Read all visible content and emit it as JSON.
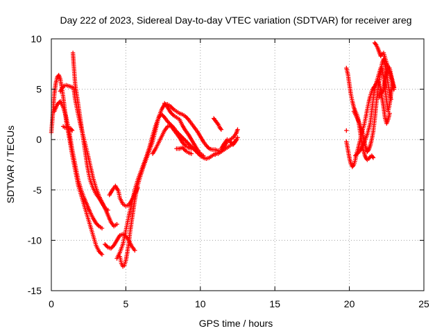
{
  "chart_data": {
    "type": "scatter",
    "title": "Day 222 of 2023, Sidereal Day-to-day VTEC variation (SDTVAR) for receiver areg",
    "xlabel": "GPS time / hours",
    "ylabel": "SDTVAR / TECUs",
    "xlim": [
      0,
      25
    ],
    "ylim": [
      -15,
      10
    ],
    "xticks": [
      0,
      5,
      10,
      15,
      20,
      25
    ],
    "yticks": [
      -15,
      -10,
      -5,
      0,
      5,
      10
    ],
    "grid": true,
    "marker": "+",
    "color": "#ff0000",
    "segments": [
      [
        [
          0.0,
          0.7
        ],
        [
          0.1,
          2.5
        ],
        [
          0.2,
          4.5
        ],
        [
          0.3,
          5.6
        ],
        [
          0.4,
          6.2
        ],
        [
          0.5,
          6.4
        ],
        [
          0.6,
          6.0
        ],
        [
          0.7,
          5.2
        ],
        [
          0.8,
          4.2
        ],
        [
          0.9,
          3.0
        ],
        [
          1.0,
          1.8
        ],
        [
          1.2,
          0.2
        ],
        [
          1.4,
          -1.5
        ],
        [
          1.6,
          -3.0
        ],
        [
          1.8,
          -4.5
        ],
        [
          2.0,
          -5.5
        ],
        [
          2.2,
          -6.5
        ],
        [
          2.4,
          -7.5
        ],
        [
          2.6,
          -8.5
        ],
        [
          2.8,
          -9.5
        ],
        [
          3.0,
          -10.5
        ],
        [
          3.2,
          -11.1
        ],
        [
          3.4,
          -11.4
        ]
      ],
      [
        [
          0.2,
          2.8
        ],
        [
          0.4,
          3.5
        ],
        [
          0.6,
          3.8
        ],
        [
          0.8,
          3.2
        ],
        [
          1.0,
          2.2
        ],
        [
          1.2,
          0.8
        ],
        [
          1.4,
          -1.0
        ],
        [
          1.6,
          -2.5
        ],
        [
          1.8,
          -4.0
        ],
        [
          2.0,
          -5.0
        ],
        [
          2.2,
          -5.8
        ],
        [
          2.4,
          -6.5
        ],
        [
          2.6,
          -7.2
        ],
        [
          2.8,
          -7.8
        ],
        [
          3.0,
          -8.3
        ],
        [
          3.2,
          -8.6
        ],
        [
          3.4,
          -8.8
        ]
      ],
      [
        [
          0.6,
          4.8
        ],
        [
          0.8,
          5.3
        ],
        [
          1.0,
          5.4
        ],
        [
          1.2,
          5.3
        ],
        [
          1.4,
          5.2
        ],
        [
          1.5,
          5.1
        ],
        [
          1.6,
          4.0
        ],
        [
          1.8,
          2.5
        ],
        [
          2.0,
          1.2
        ],
        [
          2.2,
          0.0
        ],
        [
          2.4,
          -1.2
        ],
        [
          2.6,
          -2.5
        ],
        [
          2.8,
          -3.8
        ],
        [
          3.0,
          -4.8
        ],
        [
          3.2,
          -5.6
        ],
        [
          3.4,
          -6.2
        ],
        [
          3.6,
          -6.8
        ],
        [
          3.8,
          -7.5
        ],
        [
          4.0,
          -8.2
        ],
        [
          4.2,
          -8.6
        ],
        [
          4.4,
          -8.4
        ]
      ],
      [
        [
          1.45,
          8.6
        ],
        [
          1.5,
          7.5
        ],
        [
          1.55,
          6.5
        ],
        [
          1.6,
          5.5
        ],
        [
          1.7,
          4.5
        ],
        [
          1.8,
          3.5
        ],
        [
          1.9,
          2.5
        ],
        [
          2.0,
          1.5
        ],
        [
          2.1,
          0.5
        ],
        [
          2.2,
          -0.5
        ],
        [
          2.3,
          -1.5
        ],
        [
          2.4,
          -2.5
        ],
        [
          2.5,
          -3.3
        ],
        [
          2.6,
          -4.0
        ],
        [
          2.8,
          -4.8
        ],
        [
          3.0,
          -5.4
        ],
        [
          3.2,
          -5.8
        ],
        [
          3.4,
          -6.3
        ],
        [
          3.6,
          -6.8
        ],
        [
          3.8,
          -7.0
        ]
      ],
      [
        [
          3.6,
          -10.4
        ],
        [
          3.8,
          -10.7
        ],
        [
          4.0,
          -10.8
        ],
        [
          4.2,
          -10.5
        ],
        [
          4.4,
          -10.0
        ],
        [
          4.6,
          -9.5
        ],
        [
          4.8,
          -9.4
        ],
        [
          5.0,
          -9.6
        ],
        [
          5.2,
          -10.0
        ],
        [
          5.4,
          -10.6
        ],
        [
          5.6,
          -11.0
        ]
      ],
      [
        [
          4.6,
          -11.6
        ],
        [
          4.7,
          -12.3
        ],
        [
          4.8,
          -12.6
        ],
        [
          4.9,
          -12.5
        ],
        [
          5.0,
          -12.0
        ],
        [
          5.1,
          -11.2
        ],
        [
          5.2,
          -10.2
        ],
        [
          5.3,
          -9.0
        ],
        [
          5.4,
          -8.0
        ],
        [
          5.5,
          -7.0
        ],
        [
          5.6,
          -6.0
        ],
        [
          5.7,
          -5.2
        ],
        [
          5.8,
          -4.5
        ],
        [
          6.0,
          -3.5
        ],
        [
          6.2,
          -2.6
        ],
        [
          6.4,
          -1.8
        ],
        [
          6.6,
          -1.0
        ],
        [
          6.8,
          -0.2
        ],
        [
          7.0,
          1.0
        ],
        [
          7.2,
          2.2
        ],
        [
          7.4,
          3.0
        ],
        [
          7.6,
          3.5
        ],
        [
          7.8,
          3.5
        ],
        [
          8.0,
          3.3
        ],
        [
          8.2,
          3.0
        ],
        [
          8.4,
          2.8
        ],
        [
          8.6,
          2.6
        ],
        [
          8.8,
          2.5
        ],
        [
          9.0,
          2.3
        ],
        [
          9.2,
          2.0
        ],
        [
          9.4,
          1.6
        ],
        [
          9.6,
          1.2
        ],
        [
          9.8,
          0.8
        ],
        [
          10.0,
          0.3
        ],
        [
          10.2,
          -0.2
        ],
        [
          10.4,
          -0.6
        ],
        [
          10.6,
          -0.9
        ],
        [
          10.8,
          -1.0
        ],
        [
          11.0,
          -1.0
        ],
        [
          11.2,
          -1.1
        ]
      ],
      [
        [
          4.4,
          -11.8
        ],
        [
          4.6,
          -11.2
        ],
        [
          4.8,
          -10.4
        ],
        [
          5.0,
          -9.0
        ],
        [
          5.2,
          -7.6
        ],
        [
          5.4,
          -6.3
        ],
        [
          5.6,
          -5.0
        ],
        [
          5.8,
          -4.0
        ],
        [
          6.0,
          -3.2
        ],
        [
          6.2,
          -2.4
        ],
        [
          6.4,
          -1.6
        ],
        [
          6.6,
          -0.7
        ],
        [
          6.8,
          0.4
        ],
        [
          7.0,
          1.4
        ],
        [
          7.2,
          2.2
        ],
        [
          7.4,
          2.5
        ],
        [
          7.6,
          2.2
        ],
        [
          7.8,
          1.8
        ],
        [
          8.0,
          1.5
        ],
        [
          8.2,
          1.2
        ],
        [
          8.4,
          0.8
        ],
        [
          8.6,
          0.5
        ],
        [
          8.8,
          0.2
        ],
        [
          9.0,
          -0.1
        ],
        [
          9.2,
          -0.4
        ],
        [
          9.4,
          -0.7
        ],
        [
          9.6,
          -1.0
        ],
        [
          9.8,
          -1.3
        ],
        [
          10.0,
          -1.6
        ],
        [
          10.2,
          -1.8
        ],
        [
          10.4,
          -1.9
        ],
        [
          10.6,
          -1.8
        ],
        [
          10.8,
          -1.6
        ],
        [
          11.0,
          -1.4
        ]
      ],
      [
        [
          3.9,
          -5.5
        ],
        [
          4.1,
          -5.0
        ],
        [
          4.3,
          -4.6
        ],
        [
          4.5,
          -5.1
        ],
        [
          4.6,
          -5.8
        ],
        [
          4.8,
          -6.4
        ],
        [
          5.0,
          -6.6
        ],
        [
          5.2,
          -6.5
        ],
        [
          5.4,
          -6.0
        ],
        [
          5.6,
          -5.4
        ],
        [
          5.8,
          -4.8
        ]
      ],
      [
        [
          6.8,
          -1.4
        ],
        [
          7.0,
          -0.9
        ],
        [
          7.2,
          -0.3
        ],
        [
          7.4,
          0.3
        ],
        [
          7.6,
          0.9
        ],
        [
          7.8,
          1.3
        ],
        [
          8.0,
          1.4
        ],
        [
          8.2,
          1.0
        ],
        [
          8.4,
          0.6
        ],
        [
          8.6,
          0.2
        ],
        [
          8.8,
          -0.3
        ],
        [
          9.0,
          -0.6
        ],
        [
          9.2,
          -0.8
        ],
        [
          9.4,
          -0.9
        ]
      ],
      [
        [
          7.6,
          3.6
        ],
        [
          7.8,
          3.2
        ],
        [
          8.0,
          2.7
        ],
        [
          8.2,
          2.4
        ],
        [
          8.4,
          2.2
        ],
        [
          8.6,
          2.0
        ],
        [
          8.8,
          1.4
        ],
        [
          9.0,
          0.9
        ],
        [
          9.2,
          0.5
        ],
        [
          9.4,
          0.0
        ],
        [
          9.6,
          -0.5
        ],
        [
          9.8,
          -1.0
        ],
        [
          10.0,
          -1.4
        ],
        [
          10.2,
          -1.6
        ]
      ],
      [
        [
          10.9,
          2.1
        ],
        [
          11.0,
          1.9
        ],
        [
          11.1,
          1.7
        ],
        [
          11.2,
          1.5
        ],
        [
          11.3,
          1.2
        ],
        [
          11.4,
          1.0
        ]
      ],
      [
        [
          11.0,
          -1.5
        ],
        [
          11.2,
          -1.3
        ],
        [
          11.4,
          -1.1
        ],
        [
          11.6,
          -0.7
        ],
        [
          11.8,
          -0.2
        ],
        [
          12.0,
          0.0
        ],
        [
          12.2,
          0.2
        ],
        [
          12.4,
          0.6
        ],
        [
          12.5,
          1.0
        ]
      ],
      [
        [
          11.2,
          -1.4
        ],
        [
          11.4,
          -1.2
        ],
        [
          11.6,
          -1.0
        ],
        [
          11.8,
          -0.8
        ],
        [
          12.0,
          -0.6
        ],
        [
          12.2,
          -0.4
        ],
        [
          12.4,
          -0.1
        ],
        [
          12.5,
          0.2
        ]
      ],
      [
        [
          11.4,
          -0.9
        ],
        [
          11.6,
          -0.4
        ],
        [
          11.8,
          0.0
        ],
        [
          12.0,
          -0.2
        ],
        [
          12.2,
          -0.5
        ],
        [
          12.3,
          -0.3
        ],
        [
          12.4,
          0.0
        ]
      ],
      [
        [
          0.8,
          1.3
        ],
        [
          0.9,
          1.2
        ],
        [
          1.0,
          1.2
        ],
        [
          1.1,
          1.2
        ],
        [
          1.2,
          1.1
        ],
        [
          1.3,
          1.1
        ],
        [
          1.4,
          0.9
        ]
      ],
      [
        [
          8.4,
          -0.9
        ],
        [
          8.6,
          -0.9
        ],
        [
          8.8,
          -0.8
        ],
        [
          9.0,
          -1.1
        ],
        [
          9.2,
          -1.3
        ],
        [
          9.4,
          -1.4
        ]
      ],
      [
        [
          19.8,
          0.9
        ]
      ],
      [
        [
          19.8,
          7.1
        ],
        [
          19.9,
          6.5
        ],
        [
          20.0,
          5.5
        ],
        [
          20.1,
          4.5
        ],
        [
          20.2,
          3.8
        ],
        [
          20.3,
          3.2
        ],
        [
          20.4,
          2.8
        ],
        [
          20.5,
          2.5
        ],
        [
          20.6,
          2.0
        ],
        [
          20.7,
          1.0
        ],
        [
          20.8,
          0.0
        ],
        [
          20.9,
          -0.8
        ],
        [
          21.0,
          -1.4
        ],
        [
          21.1,
          -1.8
        ],
        [
          21.2,
          -2.0
        ],
        [
          21.3,
          -1.9
        ],
        [
          21.4,
          -1.7
        ],
        [
          21.5,
          -1.6
        ],
        [
          21.6,
          -1.8
        ]
      ],
      [
        [
          19.8,
          -0.2
        ],
        [
          19.9,
          -1.0
        ],
        [
          20.0,
          -1.8
        ],
        [
          20.1,
          -2.4
        ],
        [
          20.2,
          -2.7
        ],
        [
          20.3,
          -2.5
        ],
        [
          20.4,
          -2.0
        ],
        [
          20.5,
          -1.3
        ],
        [
          20.6,
          -0.8
        ],
        [
          20.7,
          -0.2
        ],
        [
          20.8,
          0.5
        ],
        [
          20.9,
          1.0
        ],
        [
          21.0,
          1.5
        ],
        [
          21.1,
          2.2
        ],
        [
          21.2,
          3.0
        ],
        [
          21.3,
          3.7
        ],
        [
          21.4,
          4.3
        ],
        [
          21.5,
          4.8
        ],
        [
          21.6,
          5.1
        ],
        [
          21.7,
          5.3
        ],
        [
          21.8,
          5.6
        ],
        [
          21.9,
          6.1
        ],
        [
          22.0,
          6.6
        ],
        [
          22.1,
          7.1
        ],
        [
          22.2,
          7.0
        ],
        [
          22.3,
          6.2
        ],
        [
          22.4,
          5.1
        ],
        [
          22.5,
          3.8
        ],
        [
          22.6,
          2.8
        ],
        [
          22.7,
          3.5
        ],
        [
          22.8,
          4.6
        ],
        [
          22.9,
          5.5
        ]
      ],
      [
        [
          20.3,
          2.8
        ],
        [
          20.5,
          2.2
        ],
        [
          20.7,
          1.5
        ],
        [
          20.9,
          0.6
        ],
        [
          21.0,
          -0.2
        ],
        [
          21.1,
          -0.8
        ],
        [
          21.2,
          -1.2
        ],
        [
          21.3,
          -1.0
        ],
        [
          21.4,
          -0.6
        ],
        [
          21.5,
          0.0
        ],
        [
          21.6,
          0.8
        ],
        [
          21.7,
          2.0
        ],
        [
          21.8,
          3.5
        ],
        [
          21.9,
          4.8
        ],
        [
          22.0,
          5.8
        ],
        [
          22.1,
          6.8
        ],
        [
          22.2,
          7.6
        ],
        [
          22.3,
          8.0
        ],
        [
          22.4,
          7.4
        ],
        [
          22.5,
          6.5
        ],
        [
          22.6,
          5.5
        ],
        [
          22.7,
          4.5
        ],
        [
          22.8,
          4.0
        ]
      ],
      [
        [
          20.4,
          -1.6
        ],
        [
          20.6,
          -1.3
        ],
        [
          20.8,
          -0.9
        ],
        [
          21.0,
          -0.3
        ],
        [
          21.2,
          0.5
        ],
        [
          21.4,
          1.6
        ],
        [
          21.5,
          2.8
        ],
        [
          21.6,
          4.0
        ],
        [
          21.7,
          5.0
        ],
        [
          21.8,
          5.5
        ],
        [
          21.9,
          5.8
        ],
        [
          22.0,
          5.6
        ],
        [
          22.1,
          5.0
        ],
        [
          22.2,
          4.6
        ],
        [
          22.3,
          4.9
        ],
        [
          22.4,
          5.8
        ],
        [
          22.5,
          6.6
        ],
        [
          22.6,
          7.2
        ],
        [
          22.7,
          7.1
        ],
        [
          22.8,
          6.4
        ],
        [
          22.9,
          5.8
        ],
        [
          23.0,
          5.2
        ]
      ],
      [
        [
          21.7,
          9.6
        ],
        [
          21.8,
          9.4
        ],
        [
          21.9,
          9.1
        ],
        [
          22.0,
          8.7
        ],
        [
          22.1,
          8.3
        ],
        [
          22.2,
          8.5
        ],
        [
          22.3,
          8.6
        ],
        [
          22.4,
          8.1
        ],
        [
          22.5,
          7.6
        ],
        [
          22.6,
          7.2
        ],
        [
          22.7,
          6.8
        ],
        [
          22.8,
          6.2
        ],
        [
          22.9,
          5.6
        ],
        [
          23.0,
          5.0
        ]
      ],
      [
        [
          22.0,
          4.2
        ],
        [
          22.1,
          4.7
        ],
        [
          22.2,
          4.1
        ],
        [
          22.3,
          3.2
        ],
        [
          22.4,
          2.1
        ],
        [
          22.5,
          1.6
        ],
        [
          22.6,
          2.0
        ],
        [
          22.7,
          2.6
        ]
      ]
    ]
  }
}
